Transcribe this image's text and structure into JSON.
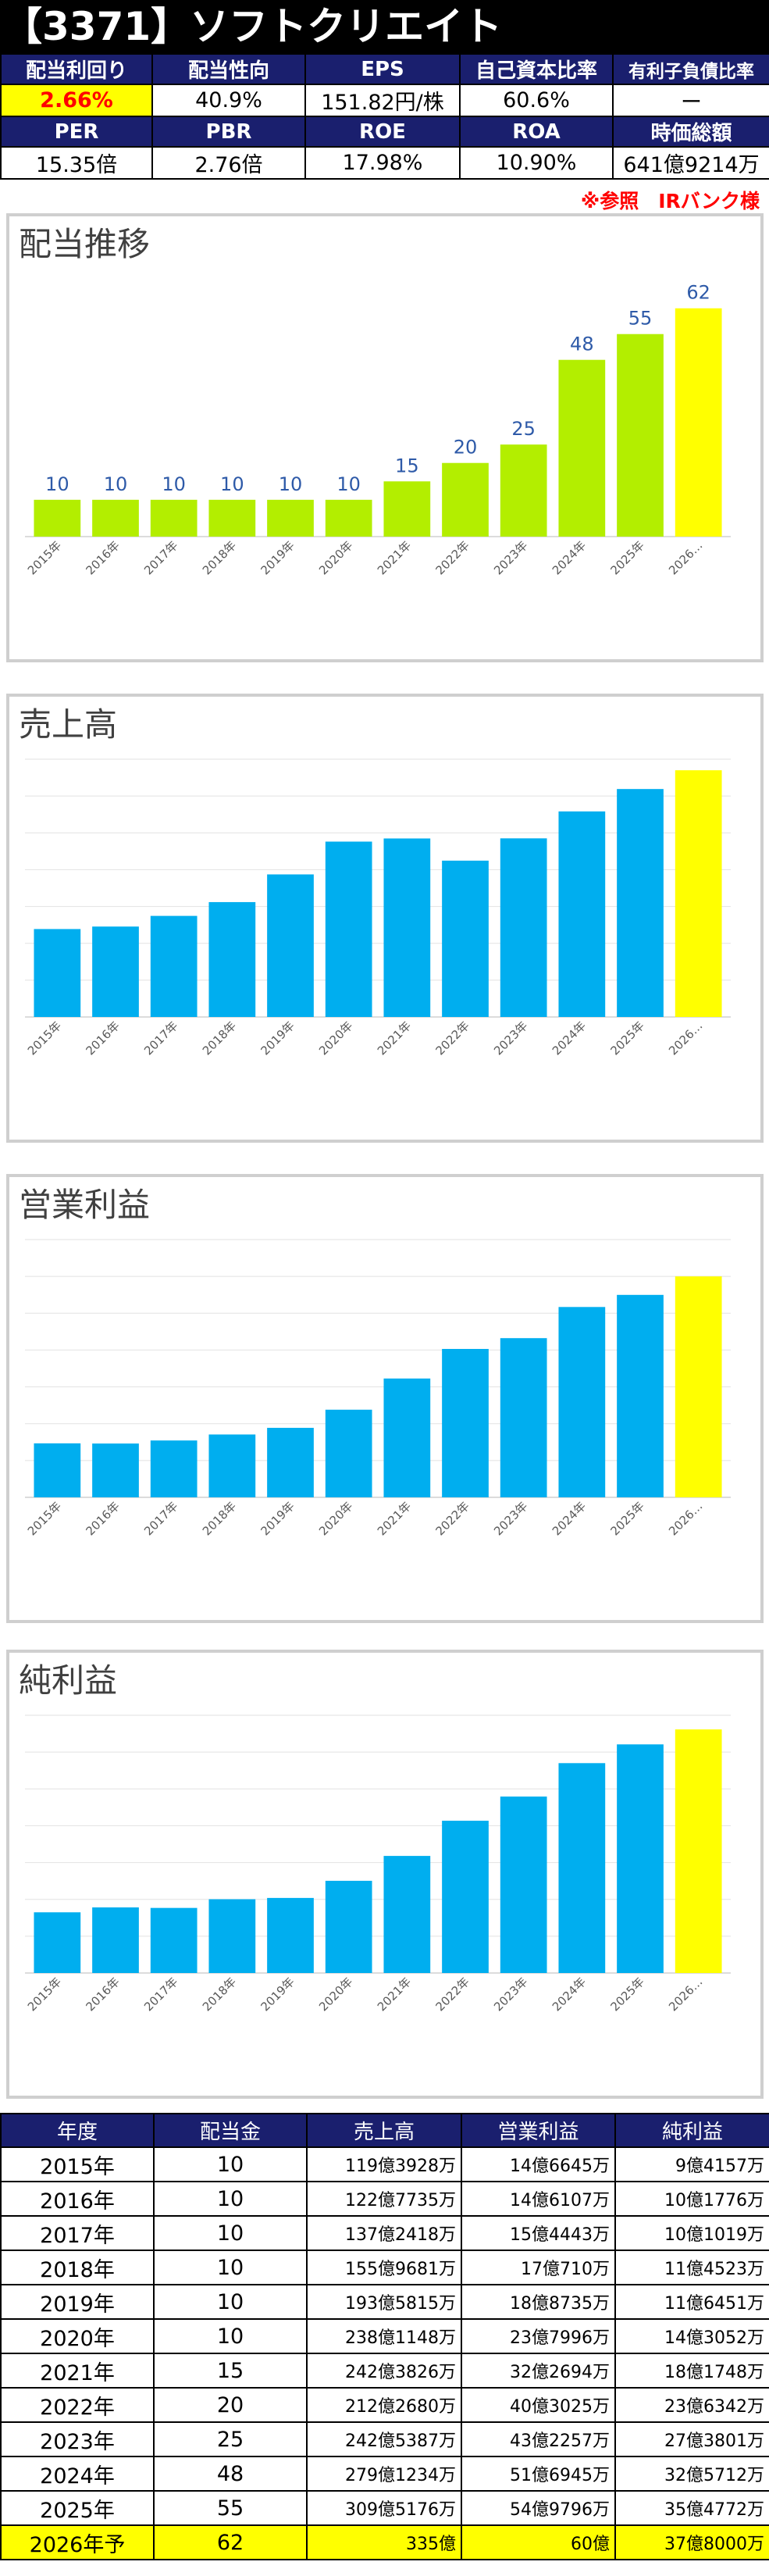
{
  "header": {
    "title": "【3371】ソフトクリエイト",
    "source_note": "※参照　IRバンク様"
  },
  "metrics": {
    "row1_labels": [
      "配当利回り",
      "配当性向",
      "EPS",
      "自己資本比率",
      "有利子負債比率"
    ],
    "row1_values": [
      "2.66%",
      "40.9%",
      "151.82円/株",
      "60.6%",
      "ー"
    ],
    "row2_labels": [
      "PER",
      "PBR",
      "ROE",
      "ROA",
      "時価総額"
    ],
    "row2_values": [
      "15.35倍",
      "2.76倍",
      "17.98%",
      "10.90%",
      "641億9214万"
    ]
  },
  "colors": {
    "dividend_bar": "#b3ee00",
    "finance_bar": "#00aeef",
    "forecast_bar": "#ffff00",
    "header_navy": "#1a1f6e",
    "value_label": "#2e5aa8"
  },
  "chart_data": [
    {
      "type": "bar",
      "title": "配当推移",
      "categories": [
        "2015年",
        "2016年",
        "2017年",
        "2018年",
        "2019年",
        "2020年",
        "2021年",
        "2022年",
        "2023年",
        "2024年",
        "2025年",
        "2026…"
      ],
      "values": [
        10,
        10,
        10,
        10,
        10,
        10,
        15,
        20,
        25,
        48,
        55,
        62
      ],
      "data_labels": true,
      "ylim": [
        0,
        70
      ],
      "grid": false
    },
    {
      "type": "bar",
      "title": "売上高",
      "categories": [
        "2015年",
        "2016年",
        "2017年",
        "2018年",
        "2019年",
        "2020年",
        "2021年",
        "2022年",
        "2023年",
        "2024年",
        "2025年",
        "2026…"
      ],
      "values": [
        119.39,
        122.77,
        137.24,
        155.97,
        193.58,
        238.11,
        242.38,
        212.27,
        242.54,
        279.12,
        309.52,
        335
      ],
      "data_labels": false,
      "ylim": [
        0,
        350
      ],
      "grid": true
    },
    {
      "type": "bar",
      "title": "営業利益",
      "categories": [
        "2015年",
        "2016年",
        "2017年",
        "2018年",
        "2019年",
        "2020年",
        "2021年",
        "2022年",
        "2023年",
        "2024年",
        "2025年",
        "2026…"
      ],
      "values": [
        14.66,
        14.61,
        15.44,
        17.07,
        18.87,
        23.8,
        32.27,
        40.3,
        43.23,
        51.69,
        54.98,
        60
      ],
      "data_labels": false,
      "ylim": [
        0,
        70
      ],
      "grid": true
    },
    {
      "type": "bar",
      "title": "純利益",
      "categories": [
        "2015年",
        "2016年",
        "2017年",
        "2018年",
        "2019年",
        "2020年",
        "2021年",
        "2022年",
        "2023年",
        "2024年",
        "2025年",
        "2026…"
      ],
      "values": [
        9.42,
        10.18,
        10.1,
        11.45,
        11.65,
        14.31,
        18.17,
        23.63,
        27.38,
        32.57,
        35.48,
        37.8
      ],
      "data_labels": false,
      "ylim": [
        0,
        40
      ],
      "grid": true
    }
  ],
  "table": {
    "headers": [
      "年度",
      "配当金",
      "売上高",
      "営業利益",
      "純利益"
    ],
    "rows": [
      [
        "2015年",
        "10",
        "119億3928万",
        "14億6645万",
        "9億4157万"
      ],
      [
        "2016年",
        "10",
        "122億7735万",
        "14億6107万",
        "10億1776万"
      ],
      [
        "2017年",
        "10",
        "137億2418万",
        "15億4443万",
        "10億1019万"
      ],
      [
        "2018年",
        "10",
        "155億9681万",
        "17億710万",
        "11億4523万"
      ],
      [
        "2019年",
        "10",
        "193億5815万",
        "18億8735万",
        "11億6451万"
      ],
      [
        "2020年",
        "10",
        "238億1148万",
        "23億7996万",
        "14億3052万"
      ],
      [
        "2021年",
        "15",
        "242億3826万",
        "32億2694万",
        "18億1748万"
      ],
      [
        "2022年",
        "20",
        "212億2680万",
        "40億3025万",
        "23億6342万"
      ],
      [
        "2023年",
        "25",
        "242億5387万",
        "43億2257万",
        "27億3801万"
      ],
      [
        "2024年",
        "48",
        "279億1234万",
        "51億6945万",
        "32億5712万"
      ],
      [
        "2025年",
        "55",
        "309億5176万",
        "54億9796万",
        "35億4772万"
      ],
      [
        "2026年予",
        "62",
        "335億",
        "60億",
        "37億8000万"
      ]
    ]
  }
}
